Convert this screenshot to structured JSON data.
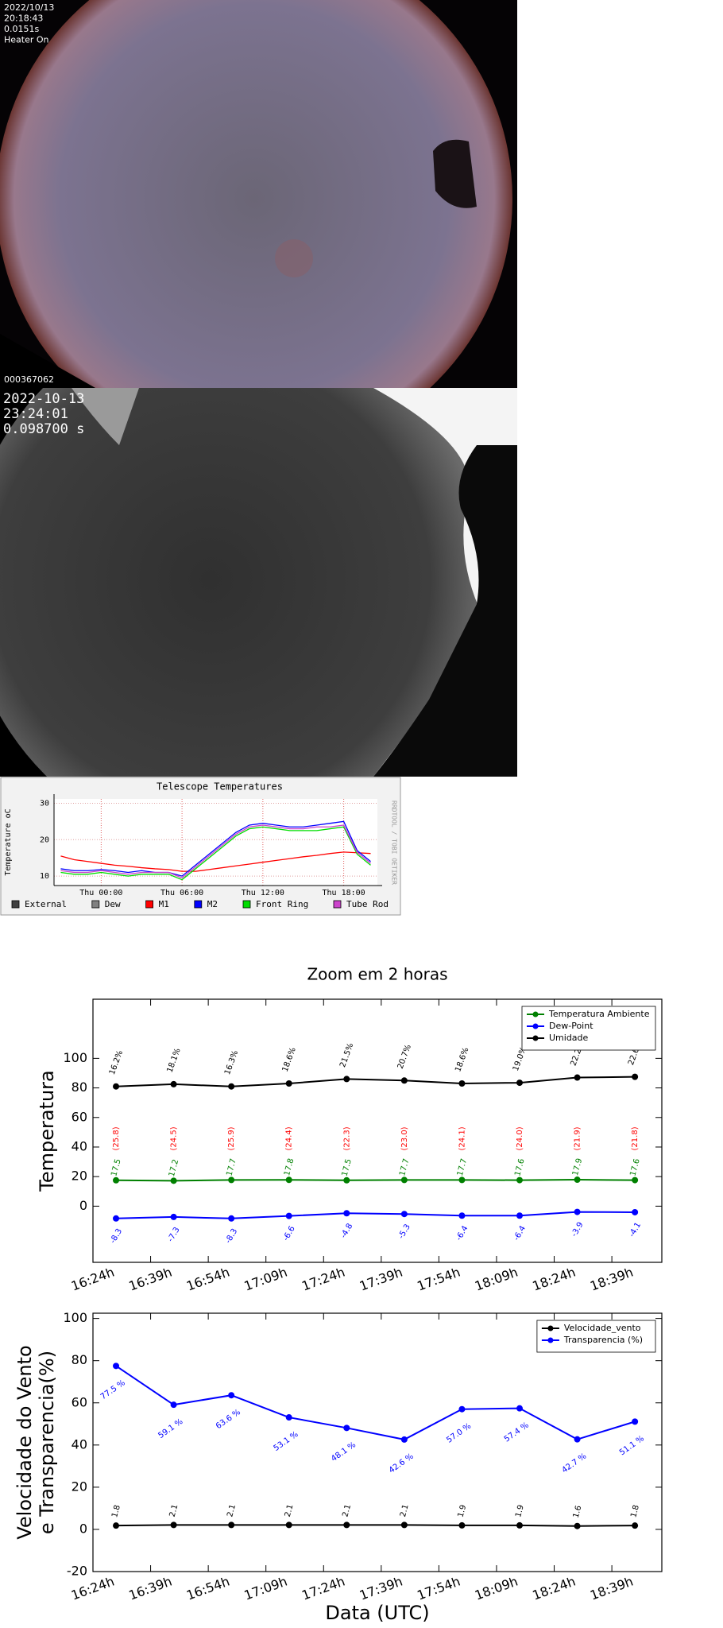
{
  "camera_1": {
    "lines": [
      "2022/10/13",
      "20:18:43",
      "0.0151s",
      "Heater On"
    ],
    "frame_id": "000367062"
  },
  "camera_2": {
    "lines": [
      "2022-10-13",
      "23:24:01",
      "0.098700 s"
    ]
  },
  "chart_data": [
    {
      "type": "line",
      "title": "Telescope Temperatures",
      "y_label": [
        "Temperature oC"
      ],
      "watermark": "RRDTOOL / TOBI OETIKER",
      "x": [
        -3,
        -2,
        -1,
        0,
        1,
        2,
        3,
        4,
        5,
        6,
        7,
        8,
        9,
        10,
        11,
        12,
        13,
        14,
        15,
        16,
        17,
        18,
        19,
        20
      ],
      "xlim": [
        -3.5,
        20.5
      ],
      "xticks": [
        {
          "value": 0,
          "label": "Thu 00:00"
        },
        {
          "value": 6,
          "label": "Thu 06:00"
        },
        {
          "value": 12,
          "label": "Thu 12:00"
        },
        {
          "value": 18,
          "label": "Thu 18:00"
        }
      ],
      "ylim": [
        7.4,
        31.2
      ],
      "yticks": [
        10,
        20,
        30
      ],
      "grid": true,
      "legend": "bottom",
      "series": [
        {
          "name": "External",
          "color": "#404040",
          "values": [
            null,
            null,
            null,
            null,
            null,
            null,
            null,
            null,
            null,
            null,
            null,
            null,
            null,
            null,
            null,
            null,
            null,
            null,
            null,
            null,
            null,
            null,
            null,
            null
          ]
        },
        {
          "name": "Dew",
          "color": "#808080",
          "values": [
            null,
            null,
            null,
            null,
            null,
            null,
            null,
            null,
            null,
            null,
            null,
            null,
            null,
            null,
            null,
            null,
            null,
            null,
            null,
            null,
            null,
            null,
            null,
            null
          ]
        },
        {
          "name": "M1",
          "color": "#ff0000",
          "values": [
            15.5,
            14.5,
            14,
            13.5,
            13,
            12.7,
            12.3,
            12,
            11.8,
            11.3,
            11.3,
            11.8,
            12.3,
            12.8,
            13.3,
            13.8,
            14.3,
            14.8,
            15.3,
            15.7,
            16.2,
            16.6,
            16.4,
            16.2
          ]
        },
        {
          "name": "M2",
          "color": "#0000ff",
          "values": [
            12,
            11.5,
            11.5,
            11.8,
            11.5,
            11,
            11.5,
            11,
            11,
            10,
            13,
            16,
            19,
            22,
            24,
            24.5,
            24,
            23.5,
            23.5,
            24,
            24.5,
            25,
            17,
            14
          ]
        },
        {
          "name": "Front Ring",
          "color": "#00dd00",
          "values": [
            11,
            10.5,
            10.5,
            11,
            10.5,
            10,
            10.5,
            10.5,
            10.5,
            9,
            12,
            15,
            18,
            21,
            23,
            23.5,
            23,
            22.5,
            22.5,
            22.5,
            23,
            23.5,
            16,
            13
          ]
        },
        {
          "name": "Tube Rod",
          "color": "#cc44cc",
          "values": [
            11.5,
            11,
            11,
            11.5,
            11,
            10.5,
            11,
            11,
            11,
            9.5,
            12.5,
            15.5,
            18.5,
            21.5,
            23.5,
            24,
            23.5,
            23,
            23,
            23.5,
            23.5,
            24,
            16.5,
            13.5
          ]
        }
      ]
    },
    {
      "type": "line",
      "title": "Zoom em 2 horas",
      "y_label": [
        "Temperatura"
      ],
      "x": [
        "16:30",
        "16:45",
        "17:00",
        "17:15",
        "17:30",
        "17:45",
        "18:00",
        "18:15",
        "18:30",
        "18:45"
      ],
      "xlim": [
        "16:24",
        "18:52"
      ],
      "xticks": [
        {
          "value": "16:24",
          "label": "16:24h"
        },
        {
          "value": "16:39",
          "label": "16:39h"
        },
        {
          "value": "16:54",
          "label": "16:54h"
        },
        {
          "value": "17:09",
          "label": "17:09h"
        },
        {
          "value": "17:24",
          "label": "17:24h"
        },
        {
          "value": "17:39",
          "label": "17:39h"
        },
        {
          "value": "17:54",
          "label": "17:54h"
        },
        {
          "value": "18:09",
          "label": "18:09h"
        },
        {
          "value": "18:24",
          "label": "18:24h"
        },
        {
          "value": "18:39",
          "label": "18:39h"
        }
      ],
      "ylim": [
        -38,
        140
      ],
      "yticks": [
        0,
        20,
        40,
        60,
        80,
        100
      ],
      "legend": "upper right",
      "series": [
        {
          "name": "Temperatura Ambiente",
          "color": "#008000",
          "values": [
            17.5,
            17.2,
            17.7,
            17.8,
            17.5,
            17.7,
            17.7,
            17.6,
            17.9,
            17.6
          ]
        },
        {
          "name": "Dew-Point",
          "color": "#0000ff",
          "values": [
            -8.3,
            -7.3,
            -8.3,
            -6.6,
            -4.8,
            -5.3,
            -6.4,
            -6.4,
            -3.9,
            -4.1
          ]
        },
        {
          "name": "Umidade",
          "color": "#000000",
          "values": [
            81,
            82.5,
            81,
            83,
            86,
            85,
            83,
            83.5,
            87,
            87.5
          ],
          "annotations": [
            "16.2%",
            "18.1%",
            "16.3%",
            "18.6%",
            "21.5%",
            "20.7%",
            "18.6%",
            "19.0%",
            "22.2%",
            "22.6%"
          ]
        }
      ],
      "secondary_labels": {
        "color": "#ff0000",
        "texts": [
          "(25.8)",
          "(24.5)",
          "(25.9)",
          "(24.4)",
          "(22.3)",
          "(23.0)",
          "(24.1)",
          "(24.0)",
          "(21.9)",
          "(21.8)"
        ]
      }
    },
    {
      "type": "line",
      "y_label": [
        "Velocidade do Vento",
        "e Transparencia(%)"
      ],
      "x_label": "Data (UTC)",
      "x": [
        "16:30",
        "16:45",
        "17:00",
        "17:15",
        "17:30",
        "17:45",
        "18:00",
        "18:15",
        "18:30",
        "18:45"
      ],
      "xlim": [
        "16:24",
        "18:52"
      ],
      "xticks": [
        {
          "value": "16:24",
          "label": "16:24h"
        },
        {
          "value": "16:39",
          "label": "16:39h"
        },
        {
          "value": "16:54",
          "label": "16:54h"
        },
        {
          "value": "17:09",
          "label": "17:09h"
        },
        {
          "value": "17:24",
          "label": "17:24h"
        },
        {
          "value": "17:39",
          "label": "17:39h"
        },
        {
          "value": "17:54",
          "label": "17:54h"
        },
        {
          "value": "18:09",
          "label": "18:09h"
        },
        {
          "value": "18:24",
          "label": "18:24h"
        },
        {
          "value": "18:39",
          "label": "18:39h"
        }
      ],
      "ylim": [
        -20,
        102.5
      ],
      "yticks": [
        -20,
        0,
        20,
        40,
        60,
        80,
        100
      ],
      "legend": "upper right",
      "series": [
        {
          "name": "Velocidade_vento",
          "color": "#000000",
          "values": [
            1.8,
            2.1,
            2.1,
            2.1,
            2.1,
            2.1,
            1.9,
            1.9,
            1.6,
            1.8
          ]
        },
        {
          "name": "Transparencia (%)",
          "color": "#0000ff",
          "values": [
            77.5,
            59.1,
            63.6,
            53.1,
            48.1,
            42.6,
            57.0,
            57.4,
            42.7,
            51.1
          ],
          "value_labels": [
            "77.5 %",
            "59.1 %",
            "63.6 %",
            "53.1 %",
            "48.1 %",
            "42.6 %",
            "57.0 %",
            "57.4 %",
            "42.7 %",
            "51.1 %"
          ]
        }
      ]
    }
  ]
}
